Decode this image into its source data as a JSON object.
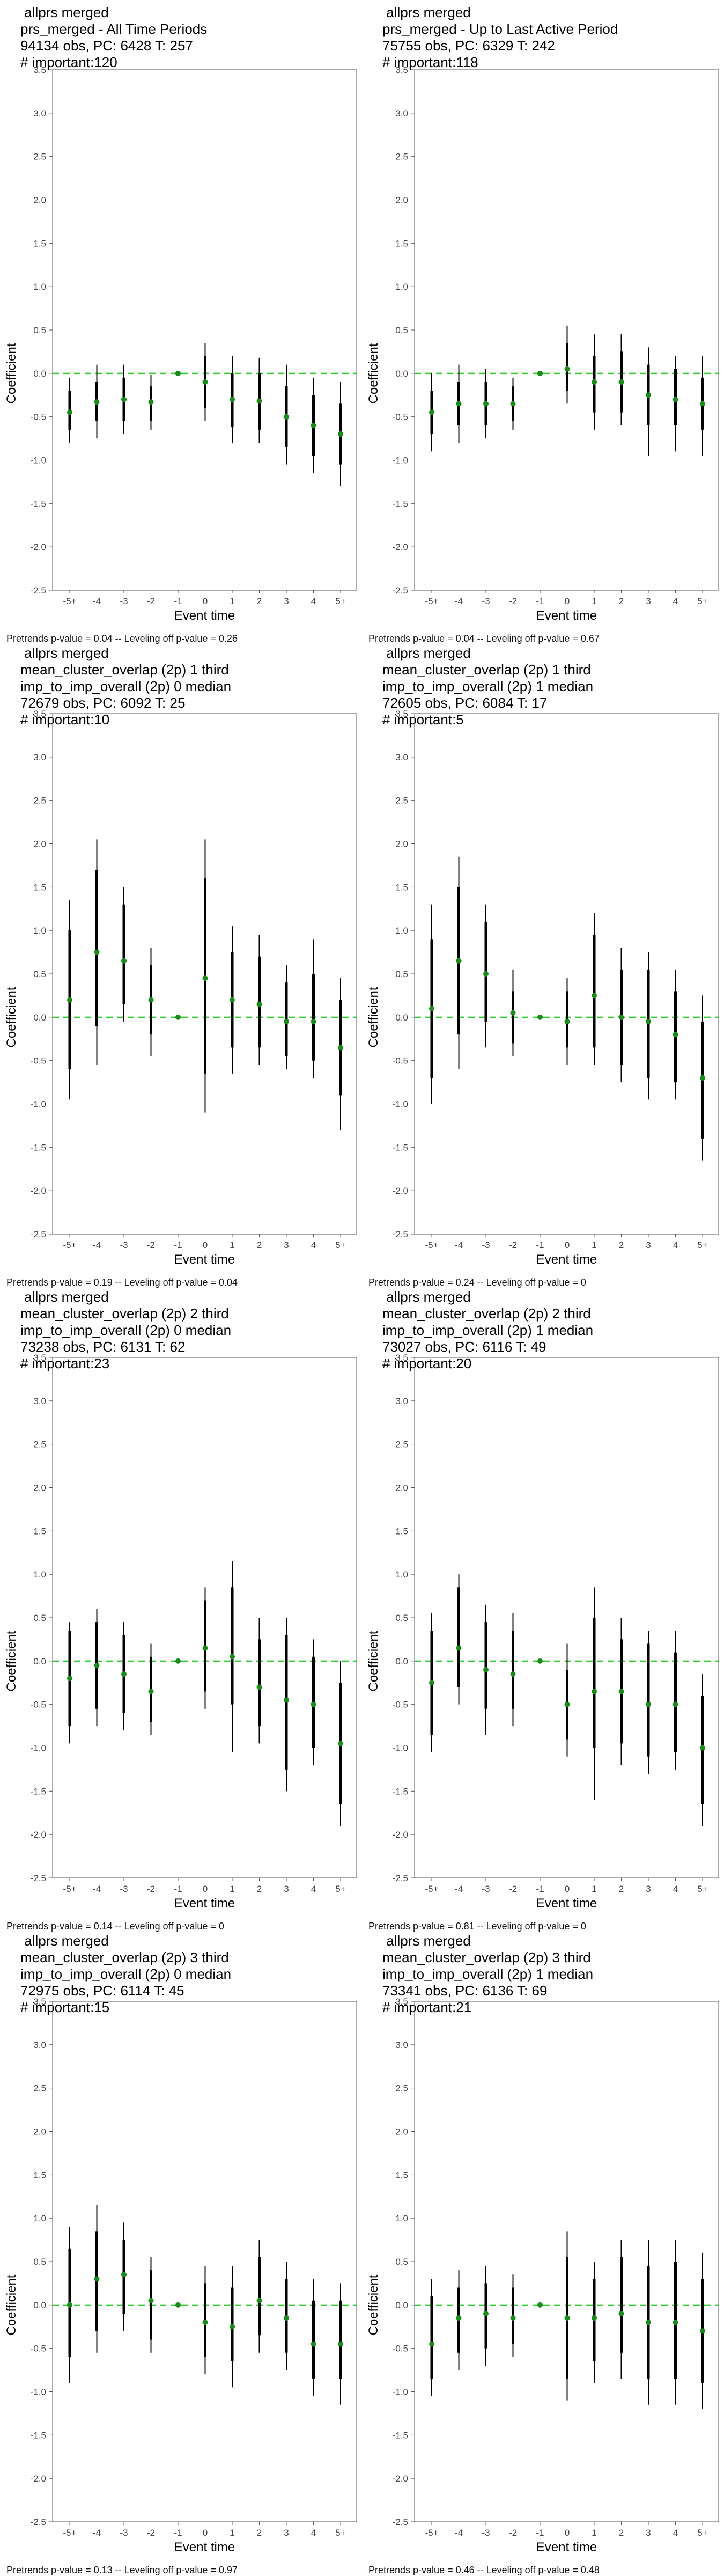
{
  "chart_data": [
    {
      "type": "scatter",
      "titles": [
        "allprs merged",
        "prs_merged - All Time Periods",
        "94134 obs, PC: 6428 T: 257",
        "# important:120"
      ],
      "xlabel": "Event time",
      "ylabel": "Coefficient",
      "categories": [
        "-5+",
        "-4",
        "-3",
        "-2",
        "-1",
        "0",
        "1",
        "2",
        "3",
        "4",
        "5+"
      ],
      "y_ticks": [
        "3.5",
        "3.0",
        "2.5",
        "2.0",
        "1.5",
        "1.0",
        "0.5",
        "0.0",
        "-0.5",
        "-1.0",
        "-1.5",
        "-2.0",
        "-2.5"
      ],
      "ylim": [
        -2.5,
        3.5
      ],
      "estimates": [
        -0.45,
        -0.33,
        -0.3,
        -0.33,
        0.0,
        -0.1,
        -0.3,
        -0.32,
        -0.5,
        -0.6,
        -0.7
      ],
      "ci_inner": [
        [
          -0.65,
          -0.2
        ],
        [
          -0.55,
          -0.1
        ],
        [
          -0.55,
          -0.05
        ],
        [
          -0.55,
          -0.15
        ],
        [
          0,
          0
        ],
        [
          -0.4,
          0.2
        ],
        [
          -0.62,
          0.0
        ],
        [
          -0.65,
          0.0
        ],
        [
          -0.85,
          -0.15
        ],
        [
          -0.95,
          -0.25
        ],
        [
          -1.05,
          -0.35
        ]
      ],
      "ci_outer": [
        [
          -0.8,
          -0.05
        ],
        [
          -0.75,
          0.1
        ],
        [
          -0.7,
          0.1
        ],
        [
          -0.65,
          -0.02
        ],
        [
          0,
          0
        ],
        [
          -0.55,
          0.35
        ],
        [
          -0.8,
          0.2
        ],
        [
          -0.8,
          0.18
        ],
        [
          -1.05,
          0.1
        ],
        [
          -1.15,
          -0.05
        ],
        [
          -1.3,
          -0.1
        ]
      ],
      "footnote": "Pretrends p-value = 0.04 -- Leveling off p-value = 0.26"
    },
    {
      "type": "scatter",
      "titles": [
        "allprs merged",
        "prs_merged - Up to Last Active Period",
        "75755 obs, PC: 6329 T: 242",
        "# important:118"
      ],
      "xlabel": "Event time",
      "ylabel": "Coefficient",
      "categories": [
        "-5+",
        "-4",
        "-3",
        "-2",
        "-1",
        "0",
        "1",
        "2",
        "3",
        "4",
        "5+"
      ],
      "y_ticks": [
        "3.5",
        "3.0",
        "2.5",
        "2.0",
        "1.5",
        "1.0",
        "0.5",
        "0.0",
        "-0.5",
        "-1.0",
        "-1.5",
        "-2.0",
        "-2.5"
      ],
      "ylim": [
        -2.5,
        3.5
      ],
      "estimates": [
        -0.45,
        -0.35,
        -0.35,
        -0.35,
        0.0,
        0.05,
        -0.1,
        -0.1,
        -0.25,
        -0.3,
        -0.35
      ],
      "ci_inner": [
        [
          -0.7,
          -0.2
        ],
        [
          -0.6,
          -0.1
        ],
        [
          -0.6,
          -0.1
        ],
        [
          -0.55,
          -0.15
        ],
        [
          0,
          0
        ],
        [
          -0.2,
          0.35
        ],
        [
          -0.45,
          0.2
        ],
        [
          -0.45,
          0.25
        ],
        [
          -0.6,
          0.1
        ],
        [
          -0.6,
          0.05
        ],
        [
          -0.65,
          -0.05
        ]
      ],
      "ci_outer": [
        [
          -0.9,
          0.0
        ],
        [
          -0.8,
          0.1
        ],
        [
          -0.75,
          0.05
        ],
        [
          -0.65,
          -0.05
        ],
        [
          0,
          0
        ],
        [
          -0.35,
          0.55
        ],
        [
          -0.65,
          0.45
        ],
        [
          -0.6,
          0.45
        ],
        [
          -0.95,
          0.3
        ],
        [
          -0.9,
          0.2
        ],
        [
          -0.95,
          0.2
        ]
      ],
      "footnote": "Pretrends p-value = 0.04 -- Leveling off p-value = 0.67"
    },
    {
      "type": "scatter",
      "titles": [
        "allprs merged",
        "mean_cluster_overlap (2p) 1 third",
        "imp_to_imp_overall (2p) 0 median",
        "72679 obs, PC: 6092 T: 25",
        "# important:10"
      ],
      "xlabel": "Event time",
      "ylabel": "Coefficient",
      "categories": [
        "-5+",
        "-4",
        "-3",
        "-2",
        "-1",
        "0",
        "1",
        "2",
        "3",
        "4",
        "5+"
      ],
      "y_ticks": [
        "3.5",
        "3.0",
        "2.5",
        "2.0",
        "1.5",
        "1.0",
        "0.5",
        "0.0",
        "-0.5",
        "-1.0",
        "-1.5",
        "-2.0",
        "-2.5"
      ],
      "ylim": [
        -2.5,
        3.5
      ],
      "estimates": [
        0.2,
        0.75,
        0.65,
        0.2,
        0.0,
        0.45,
        0.2,
        0.15,
        -0.05,
        -0.05,
        -0.35
      ],
      "ci_inner": [
        [
          -0.6,
          1.0
        ],
        [
          -0.1,
          1.7
        ],
        [
          0.15,
          1.3
        ],
        [
          -0.2,
          0.6
        ],
        [
          0,
          0
        ],
        [
          -0.65,
          1.6
        ],
        [
          -0.35,
          0.75
        ],
        [
          -0.35,
          0.7
        ],
        [
          -0.45,
          0.4
        ],
        [
          -0.5,
          0.5
        ],
        [
          -0.9,
          0.2
        ]
      ],
      "ci_outer": [
        [
          -0.95,
          1.35
        ],
        [
          -0.55,
          2.05
        ],
        [
          -0.05,
          1.5
        ],
        [
          -0.45,
          0.8
        ],
        [
          0,
          0
        ],
        [
          -1.1,
          2.05
        ],
        [
          -0.65,
          1.05
        ],
        [
          -0.55,
          0.95
        ],
        [
          -0.6,
          0.6
        ],
        [
          -0.7,
          0.9
        ],
        [
          -1.3,
          0.45
        ]
      ],
      "footnote": "Pretrends p-value = 0.19 -- Leveling off p-value = 0.04"
    },
    {
      "type": "scatter",
      "titles": [
        "allprs merged",
        "mean_cluster_overlap (2p) 1 third",
        "imp_to_imp_overall (2p) 1 median",
        "72605 obs, PC: 6084 T: 17",
        "# important:5"
      ],
      "xlabel": "Event time",
      "ylabel": "Coefficient",
      "categories": [
        "-5+",
        "-4",
        "-3",
        "-2",
        "-1",
        "0",
        "1",
        "2",
        "3",
        "4",
        "5+"
      ],
      "y_ticks": [
        "3.5",
        "3.0",
        "2.5",
        "2.0",
        "1.5",
        "1.0",
        "0.5",
        "0.0",
        "-0.5",
        "-1.0",
        "-1.5",
        "-2.0",
        "-2.5"
      ],
      "ylim": [
        -2.5,
        3.5
      ],
      "estimates": [
        0.1,
        0.65,
        0.5,
        0.05,
        0.0,
        -0.05,
        0.25,
        0.0,
        -0.05,
        -0.2,
        -0.7
      ],
      "ci_inner": [
        [
          -0.7,
          0.9
        ],
        [
          -0.2,
          1.5
        ],
        [
          -0.05,
          1.1
        ],
        [
          -0.3,
          0.3
        ],
        [
          0,
          0
        ],
        [
          -0.35,
          0.3
        ],
        [
          -0.35,
          0.95
        ],
        [
          -0.55,
          0.55
        ],
        [
          -0.7,
          0.55
        ],
        [
          -0.75,
          0.3
        ],
        [
          -1.4,
          -0.05
        ]
      ],
      "ci_outer": [
        [
          -1.0,
          1.3
        ],
        [
          -0.6,
          1.85
        ],
        [
          -0.35,
          1.3
        ],
        [
          -0.45,
          0.55
        ],
        [
          0,
          0
        ],
        [
          -0.55,
          0.45
        ],
        [
          -0.55,
          1.2
        ],
        [
          -0.75,
          0.8
        ],
        [
          -0.95,
          0.75
        ],
        [
          -0.95,
          0.55
        ],
        [
          -1.65,
          0.25
        ]
      ],
      "footnote": "Pretrends p-value = 0.24 -- Leveling off p-value = 0"
    },
    {
      "type": "scatter",
      "titles": [
        "allprs merged",
        "mean_cluster_overlap (2p) 2 third",
        "imp_to_imp_overall (2p) 0 median",
        "73238 obs, PC: 6131 T: 62",
        "# important:23"
      ],
      "xlabel": "Event time",
      "ylabel": "Coefficient",
      "categories": [
        "-5+",
        "-4",
        "-3",
        "-2",
        "-1",
        "0",
        "1",
        "2",
        "3",
        "4",
        "5+"
      ],
      "y_ticks": [
        "3.5",
        "3.0",
        "2.5",
        "2.0",
        "1.5",
        "1.0",
        "0.5",
        "0.0",
        "-0.5",
        "-1.0",
        "-1.5",
        "-2.0",
        "-2.5"
      ],
      "ylim": [
        -2.5,
        3.5
      ],
      "estimates": [
        -0.2,
        -0.05,
        -0.15,
        -0.35,
        0.0,
        0.15,
        0.05,
        -0.3,
        -0.45,
        -0.5,
        -0.95
      ],
      "ci_inner": [
        [
          -0.75,
          0.35
        ],
        [
          -0.55,
          0.45
        ],
        [
          -0.6,
          0.3
        ],
        [
          -0.7,
          0.05
        ],
        [
          0,
          0
        ],
        [
          -0.35,
          0.7
        ],
        [
          -0.5,
          0.85
        ],
        [
          -0.75,
          0.25
        ],
        [
          -1.25,
          0.3
        ],
        [
          -1.0,
          0.05
        ],
        [
          -1.65,
          -0.25
        ]
      ],
      "ci_outer": [
        [
          -0.95,
          0.45
        ],
        [
          -0.75,
          0.6
        ],
        [
          -0.8,
          0.45
        ],
        [
          -0.85,
          0.2
        ],
        [
          0,
          0
        ],
        [
          -0.55,
          0.85
        ],
        [
          -1.05,
          1.15
        ],
        [
          -0.95,
          0.5
        ],
        [
          -1.5,
          0.5
        ],
        [
          -1.2,
          0.25
        ],
        [
          -1.9,
          0.0
        ]
      ],
      "footnote": "Pretrends p-value = 0.14 -- Leveling off p-value = 0"
    },
    {
      "type": "scatter",
      "titles": [
        "allprs merged",
        "mean_cluster_overlap (2p) 2 third",
        "imp_to_imp_overall (2p) 1 median",
        "73027 obs, PC: 6116 T: 49",
        "# important:20"
      ],
      "xlabel": "Event time",
      "ylabel": "Coefficient",
      "categories": [
        "-5+",
        "-4",
        "-3",
        "-2",
        "-1",
        "0",
        "1",
        "2",
        "3",
        "4",
        "5+"
      ],
      "y_ticks": [
        "3.5",
        "3.0",
        "2.5",
        "2.0",
        "1.5",
        "1.0",
        "0.5",
        "0.0",
        "-0.5",
        "-1.0",
        "-1.5",
        "-2.0",
        "-2.5"
      ],
      "ylim": [
        -2.5,
        3.5
      ],
      "estimates": [
        -0.25,
        0.15,
        -0.1,
        -0.15,
        0.0,
        -0.5,
        -0.35,
        -0.35,
        -0.5,
        -0.5,
        -1.0
      ],
      "ci_inner": [
        [
          -0.85,
          0.35
        ],
        [
          -0.3,
          0.85
        ],
        [
          -0.55,
          0.45
        ],
        [
          -0.55,
          0.35
        ],
        [
          0,
          0
        ],
        [
          -0.9,
          -0.1
        ],
        [
          -1.0,
          0.5
        ],
        [
          -0.95,
          0.25
        ],
        [
          -1.1,
          0.2
        ],
        [
          -1.05,
          0.1
        ],
        [
          -1.65,
          -0.4
        ]
      ],
      "ci_outer": [
        [
          -1.05,
          0.55
        ],
        [
          -0.5,
          1.0
        ],
        [
          -0.85,
          0.65
        ],
        [
          -0.75,
          0.55
        ],
        [
          0,
          0
        ],
        [
          -1.1,
          0.2
        ],
        [
          -1.6,
          0.85
        ],
        [
          -1.2,
          0.5
        ],
        [
          -1.3,
          0.35
        ],
        [
          -1.25,
          0.35
        ],
        [
          -1.9,
          -0.15
        ]
      ],
      "footnote": "Pretrends p-value = 0.81 -- Leveling off p-value = 0"
    },
    {
      "type": "scatter",
      "titles": [
        "allprs merged",
        "mean_cluster_overlap (2p) 3 third",
        "imp_to_imp_overall (2p) 0 median",
        "72975 obs, PC: 6114 T: 45",
        "# important:15"
      ],
      "xlabel": "Event time",
      "ylabel": "Coefficient",
      "categories": [
        "-5+",
        "-4",
        "-3",
        "-2",
        "-1",
        "0",
        "1",
        "2",
        "3",
        "4",
        "5+"
      ],
      "y_ticks": [
        "3.5",
        "3.0",
        "2.5",
        "2.0",
        "1.5",
        "1.0",
        "0.5",
        "0.0",
        "-0.5",
        "-1.0",
        "-1.5",
        "-2.0",
        "-2.5"
      ],
      "ylim": [
        -2.5,
        3.5
      ],
      "estimates": [
        0.0,
        0.3,
        0.35,
        0.05,
        0.0,
        -0.2,
        -0.25,
        0.05,
        -0.15,
        -0.45,
        -0.45
      ],
      "ci_inner": [
        [
          -0.6,
          0.65
        ],
        [
          -0.3,
          0.85
        ],
        [
          -0.1,
          0.75
        ],
        [
          -0.4,
          0.4
        ],
        [
          0,
          0
        ],
        [
          -0.6,
          0.25
        ],
        [
          -0.65,
          0.2
        ],
        [
          -0.35,
          0.55
        ],
        [
          -0.55,
          0.3
        ],
        [
          -0.85,
          0.05
        ],
        [
          -0.85,
          0.05
        ]
      ],
      "ci_outer": [
        [
          -0.9,
          0.9
        ],
        [
          -0.55,
          1.15
        ],
        [
          -0.3,
          0.95
        ],
        [
          -0.55,
          0.55
        ],
        [
          0,
          0
        ],
        [
          -0.8,
          0.45
        ],
        [
          -0.95,
          0.45
        ],
        [
          -0.55,
          0.75
        ],
        [
          -0.75,
          0.5
        ],
        [
          -1.05,
          0.3
        ],
        [
          -1.15,
          0.25
        ]
      ],
      "footnote": "Pretrends p-value = 0.13 -- Leveling off p-value = 0.97"
    },
    {
      "type": "scatter",
      "titles": [
        "allprs merged",
        "mean_cluster_overlap (2p) 3 third",
        "imp_to_imp_overall (2p) 1 median",
        "73341 obs, PC: 6136 T: 69",
        "# important:21"
      ],
      "xlabel": "Event time",
      "ylabel": "Coefficient",
      "categories": [
        "-5+",
        "-4",
        "-3",
        "-2",
        "-1",
        "0",
        "1",
        "2",
        "3",
        "4",
        "5+"
      ],
      "y_ticks": [
        "3.5",
        "3.0",
        "2.5",
        "2.0",
        "1.5",
        "1.0",
        "0.5",
        "0.0",
        "-0.5",
        "-1.0",
        "-1.5",
        "-2.0",
        "-2.5"
      ],
      "ylim": [
        -2.5,
        3.5
      ],
      "estimates": [
        -0.45,
        -0.15,
        -0.1,
        -0.15,
        0.0,
        -0.15,
        -0.15,
        -0.1,
        -0.2,
        -0.2,
        -0.3
      ],
      "ci_inner": [
        [
          -0.85,
          0.1
        ],
        [
          -0.55,
          0.2
        ],
        [
          -0.5,
          0.25
        ],
        [
          -0.45,
          0.2
        ],
        [
          0,
          0
        ],
        [
          -0.85,
          0.55
        ],
        [
          -0.65,
          0.3
        ],
        [
          -0.55,
          0.55
        ],
        [
          -0.85,
          0.45
        ],
        [
          -0.85,
          0.5
        ],
        [
          -0.9,
          0.3
        ]
      ],
      "ci_outer": [
        [
          -1.05,
          0.3
        ],
        [
          -0.75,
          0.4
        ],
        [
          -0.7,
          0.45
        ],
        [
          -0.6,
          0.35
        ],
        [
          0,
          0
        ],
        [
          -1.1,
          0.85
        ],
        [
          -0.9,
          0.5
        ],
        [
          -0.85,
          0.75
        ],
        [
          -1.15,
          0.75
        ],
        [
          -1.15,
          0.75
        ],
        [
          -1.2,
          0.6
        ]
      ],
      "footnote": "Pretrends p-value = 0.46 -- Leveling off p-value = 0.48"
    }
  ],
  "colors": {
    "point": "#1a8a1a",
    "zero_line": "#33cc33",
    "bar": "#000000",
    "axis": "#555555"
  }
}
